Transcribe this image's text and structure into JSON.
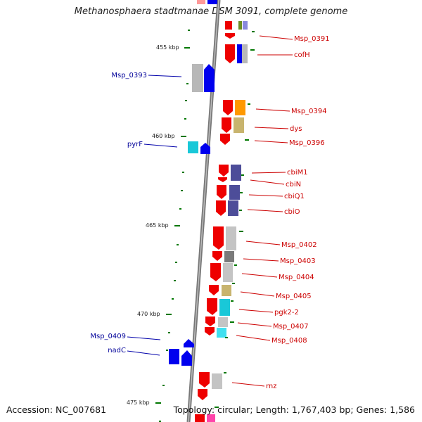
{
  "title": "Methanosphaera stadtmanae DSM 3091, complete genome",
  "accession": "Accession: NC_007681",
  "topology": "Topology: circular; Length: 1,767,403 bp; Genes: 1,586",
  "ticks": [
    "455 kbp",
    "460 kbp",
    "465 kbp",
    "470 kbp",
    "475 kbp"
  ],
  "genes_forward": [
    "Msp_0393",
    "pyrF",
    "Msp_0409",
    "nadC"
  ],
  "genes_reverse": [
    "Msp_0391",
    "cofH",
    "Msp_0394",
    "dys",
    "Msp_0396",
    "cbiM1",
    "cbiN",
    "cbiQ1",
    "cbiO",
    "Msp_0402",
    "Msp_0403",
    "Msp_0404",
    "Msp_0405",
    "pgk2-2",
    "Msp_0407",
    "Msp_0408",
    "rnz"
  ],
  "colors": {
    "forward_gene": "#0000ee",
    "reverse_gene": "#ee0000",
    "forward_label": "#000099",
    "reverse_label": "#cc0000",
    "backbone": "#888888",
    "tick_mark": "#007700",
    "cog_orange": "#ff9900",
    "cog_khaki": "#c8b46e",
    "cog_slate": "#4d4d99",
    "cog_cyan": "#19c8d8",
    "cog_grey": "#b8b8b8"
  }
}
